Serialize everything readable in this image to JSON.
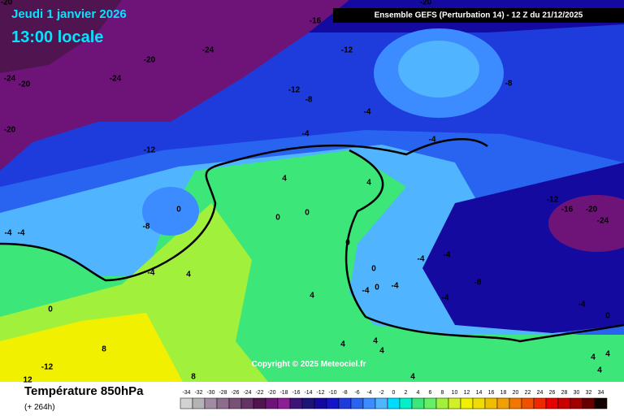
{
  "header": {
    "date": "Jeudi 1 janvier 2026",
    "time": "13:00 locale",
    "model": "Ensemble GEFS  (Perturbation 14)  -  12 Z du 21/12/2025"
  },
  "map": {
    "contour_labels": [
      "-20",
      "-20",
      "-16",
      "-24",
      "-20",
      "-24",
      "-20",
      "-24",
      "-12",
      "-8",
      "-12",
      "-8",
      "-20",
      "-4",
      "-4",
      "-12",
      "-4",
      "4",
      "4",
      "0",
      "0",
      "0",
      "-8",
      "-4",
      "-4",
      "-12",
      "-16",
      "-20",
      "-24",
      "0",
      "0",
      "-4",
      "-4",
      "-4",
      "-4",
      "0",
      "-8",
      "4",
      "-4",
      "4",
      "-4",
      "-4",
      "0",
      "0",
      "8",
      "4",
      "4",
      "4",
      "4",
      "4",
      "-12",
      "12",
      "8",
      "4",
      "4"
    ],
    "copyright": "Copyright © 2025 Meteociel.fr"
  },
  "footer": {
    "title": "Température 850hPa",
    "subtitle": "(+ 264h)"
  },
  "legend": {
    "values": [
      -34,
      -32,
      -30,
      -28,
      -26,
      -24,
      -22,
      -20,
      -18,
      -16,
      -14,
      -12,
      -10,
      -8,
      -6,
      -4,
      -2,
      0,
      2,
      4,
      6,
      8,
      10,
      12,
      14,
      16,
      18,
      20,
      22,
      24,
      26,
      28,
      30,
      32,
      34
    ],
    "colors": [
      "#d2d2d2",
      "#b4b4b4",
      "#a08ca0",
      "#8c6e8c",
      "#785078",
      "#643264",
      "#501450",
      "#6e1478",
      "#8c1e96",
      "#3c1478",
      "#1e1478",
      "#140aa0",
      "#1414c8",
      "#1e3cdc",
      "#2864f0",
      "#3c8cff",
      "#50b4ff",
      "#00dcff",
      "#00f0c8",
      "#3ce678",
      "#64f064",
      "#a0f03c",
      "#d2f028",
      "#f0f000",
      "#f0dc00",
      "#f0be00",
      "#f0a000",
      "#f07800",
      "#f05000",
      "#f02800",
      "#e60000",
      "#c80000",
      "#a00000",
      "#640000",
      "#140000"
    ]
  }
}
